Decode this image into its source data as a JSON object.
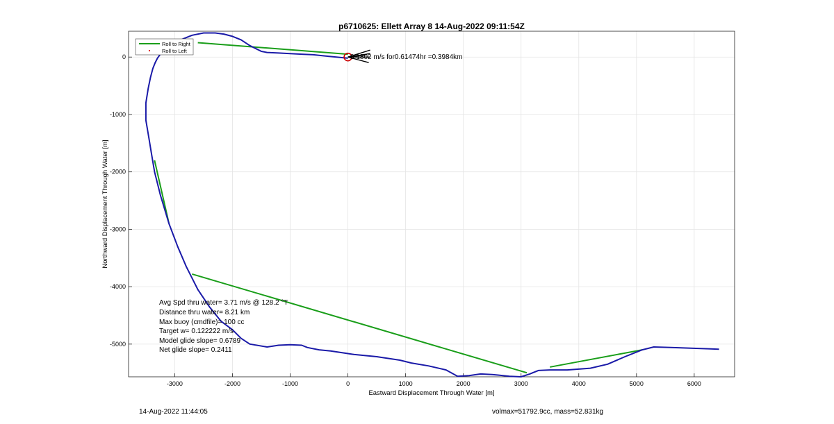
{
  "chart_data": {
    "type": "line",
    "title": "p6710625: Ellett Array 8 14-Aug-2022 09:11:54Z",
    "xlabel": "Eastward Displacement Through Water [m]",
    "ylabel": "Northward Displacement Through Water [m]",
    "xlim": [
      -3800,
      6700
    ],
    "ylim": [
      -5570,
      450
    ],
    "xticks": [
      -3000,
      -2000,
      -1000,
      0,
      1000,
      2000,
      3000,
      4000,
      5000,
      6000
    ],
    "yticks": [
      0,
      -1000,
      -2000,
      -3000,
      -4000,
      -5000
    ],
    "xtick_labels": [
      "-3000",
      "-2000",
      "-1000",
      "0",
      "1000",
      "2000",
      "3000",
      "4000",
      "5000",
      "6000"
    ],
    "ytick_labels": [
      "0",
      "-1000",
      "-2000",
      "-3000",
      "-4000",
      "-5000"
    ],
    "grid": true,
    "legend_position": "top-left",
    "legend": [
      {
        "label": "Roll to Right",
        "color": "#1a9e1a",
        "marker": "line"
      },
      {
        "label": "Roll to Left",
        "color": "#e00000",
        "marker": "dot"
      }
    ],
    "series": [
      {
        "name": "",
        "color": "#1a1aa8",
        "x": [
          6430,
          6200,
          5900,
          5600,
          5300,
          5100,
          4800,
          4500,
          4200,
          3800,
          3500,
          3300,
          3150,
          3000,
          2800,
          2600,
          2500,
          2300,
          2100,
          1900,
          1700,
          1400,
          1100,
          900,
          700,
          500,
          300,
          100,
          -100,
          -300,
          -500,
          -700,
          -800,
          -1000,
          -1200,
          -1400,
          -1700,
          -1850,
          -2000,
          -2200,
          -2400,
          -2600,
          -2800,
          -2950,
          -3100,
          -3250,
          -3350,
          -3400,
          -3450,
          -3500,
          -3500,
          -3460,
          -3420,
          -3380,
          -3340,
          -3300,
          -3250,
          -3150,
          -3000,
          -2850,
          -2700,
          -2500,
          -2300,
          -2150,
          -2000,
          -1850,
          -1700,
          -1600,
          -1500,
          -1400,
          -1200,
          -1000,
          -800,
          -600,
          -400,
          -200,
          0
        ],
        "y": [
          -5090,
          -5080,
          -5070,
          -5060,
          -5050,
          -5100,
          -5220,
          -5350,
          -5420,
          -5450,
          -5450,
          -5460,
          -5520,
          -5570,
          -5560,
          -5540,
          -5530,
          -5520,
          -5550,
          -5560,
          -5450,
          -5380,
          -5330,
          -5280,
          -5250,
          -5220,
          -5200,
          -5180,
          -5150,
          -5120,
          -5100,
          -5060,
          -5020,
          -5010,
          -5020,
          -5050,
          -5000,
          -4900,
          -4750,
          -4600,
          -4350,
          -4050,
          -3650,
          -3300,
          -2900,
          -2400,
          -2000,
          -1700,
          -1400,
          -1100,
          -800,
          -550,
          -350,
          -200,
          -100,
          -20,
          50,
          150,
          250,
          320,
          380,
          420,
          420,
          400,
          360,
          300,
          200,
          150,
          100,
          80,
          70,
          60,
          50,
          40,
          20,
          0,
          -20
        ]
      },
      {
        "name": "Roll to Right",
        "color": "#1a9e1a",
        "segments": [
          [
            [
              -2600,
              250
            ],
            [
              0,
              50
            ]
          ],
          [
            [
              -3350,
              -1800
            ],
            [
              -3100,
              -2900
            ]
          ],
          [
            [
              -2700,
              -3780
            ],
            [
              3100,
              -5500
            ]
          ],
          [
            [
              3500,
              -5400
            ],
            [
              5100,
              -5100
            ]
          ]
        ]
      }
    ],
    "marker_point": {
      "x": 0,
      "y": 0,
      "color": "#cc0000"
    },
    "annotation": "0.1802 m/s for0.61474hr =0.3984km",
    "stats": [
      "Avg Spd thru water=  3.71 m/s @ 128.2 °T",
      "Distance thru water=  8.21 km",
      "Max buoy (cmdfile)= 100 cc",
      "Target w= 0.122222 m/s",
      "Model glide slope= 0.6789",
      "Net glide slope= 0.2411"
    ]
  },
  "footer": {
    "left": "14-Aug-2022 11:44:05",
    "right": "volmax=51792.9cc, mass=52.831kg"
  }
}
